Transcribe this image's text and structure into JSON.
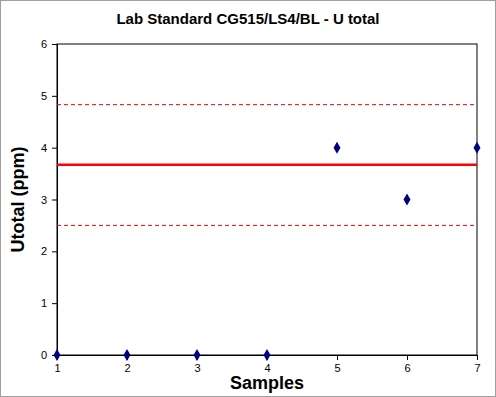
{
  "chart_data": {
    "type": "scatter",
    "title": "Lab Standard CG515/LS4/BL - U total",
    "x_label": "Samples",
    "y_label": "Utotal (ppm)",
    "x": [
      1,
      2,
      3,
      4,
      5,
      6,
      7
    ],
    "values": [
      0,
      0,
      0,
      0,
      4,
      3,
      4
    ],
    "color": "#000080",
    "marker": "diamond",
    "xlim": [
      1,
      7
    ],
    "xticks": [
      1,
      2,
      3,
      4,
      5,
      6,
      7
    ],
    "ylim": [
      0,
      6
    ],
    "yticks": [
      0,
      1,
      2,
      3,
      4,
      5,
      6
    ],
    "hlines": [
      {
        "value": 3.67,
        "color": "#ff0000",
        "line_style": "solid"
      },
      {
        "value": 4.83,
        "color": "#ff0000",
        "line_style": "dashed"
      },
      {
        "value": 2.5,
        "color": "#ff0000",
        "line_style": "dashed"
      }
    ]
  }
}
